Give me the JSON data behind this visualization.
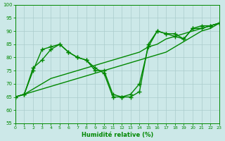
{
  "xlabel": "Humidité relative (%)",
  "xlim": [
    0,
    23
  ],
  "ylim": [
    55,
    100
  ],
  "yticks": [
    55,
    60,
    65,
    70,
    75,
    80,
    85,
    90,
    95,
    100
  ],
  "xticks": [
    0,
    1,
    2,
    3,
    4,
    5,
    6,
    7,
    8,
    9,
    10,
    11,
    12,
    13,
    14,
    15,
    16,
    17,
    18,
    19,
    20,
    21,
    22,
    23
  ],
  "bg_color": "#cce8e8",
  "grid_color": "#aacccc",
  "line_color": "#008800",
  "series": [
    {
      "y": [
        65,
        66,
        67,
        68,
        69,
        70,
        71,
        72,
        73,
        74,
        75,
        76,
        77,
        78,
        79,
        80,
        81,
        82,
        84,
        86,
        88,
        90,
        91,
        93
      ],
      "marker": null
    },
    {
      "y": [
        65,
        66,
        68,
        70,
        72,
        73,
        74,
        75,
        76,
        77,
        78,
        79,
        80,
        81,
        82,
        84,
        85,
        87,
        88,
        89,
        90,
        91,
        92,
        93
      ],
      "marker": null
    },
    {
      "y": [
        65,
        66,
        75,
        83,
        84,
        85,
        82,
        80,
        79,
        75,
        75,
        66,
        65,
        65,
        67,
        85,
        90,
        89,
        89,
        87,
        91,
        91,
        92,
        93
      ],
      "marker": "+"
    },
    {
      "y": [
        65,
        66,
        76,
        79,
        83,
        85,
        82,
        80,
        79,
        76,
        74,
        65,
        65,
        66,
        70,
        84,
        90,
        89,
        88,
        87,
        91,
        92,
        92,
        93
      ],
      "marker": "+"
    }
  ],
  "line_width": 1.0,
  "marker_size": 4
}
